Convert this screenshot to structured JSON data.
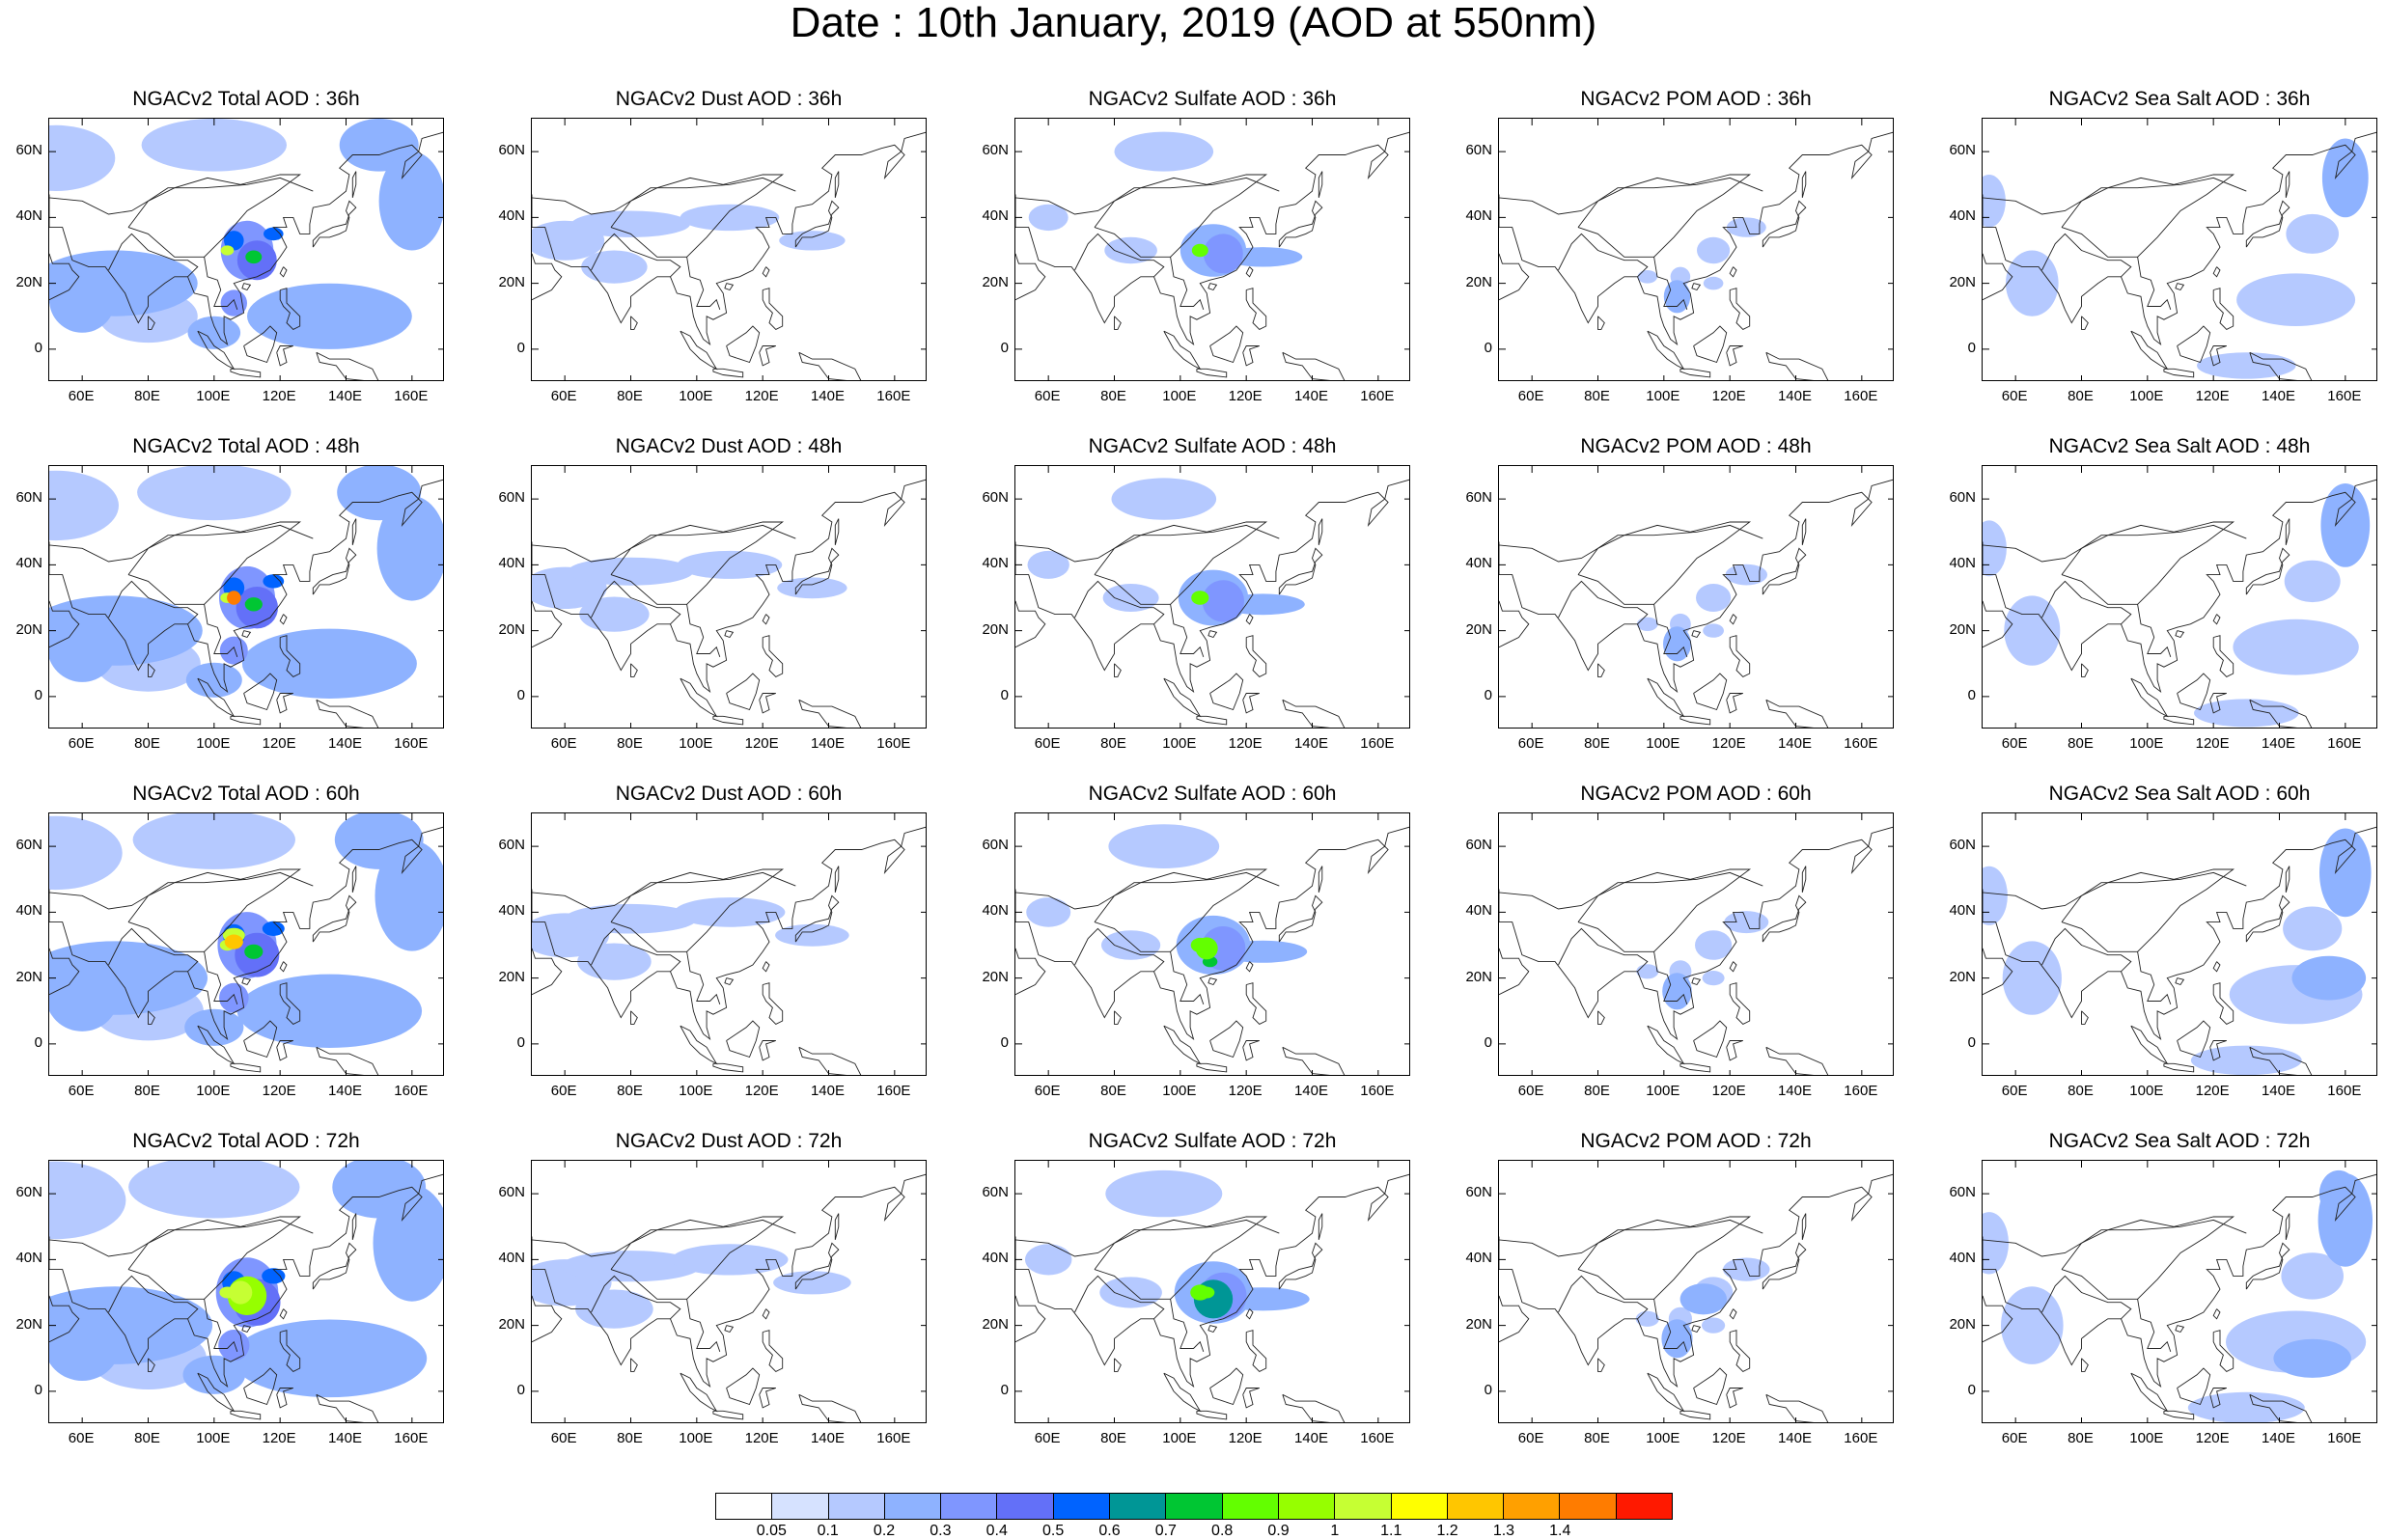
{
  "title": "Date : 10th January, 2019 (AOD at 550nm)",
  "panels": [
    {
      "title": "NGACv2 Total AOD : 36h",
      "species": "total",
      "lead": "36h"
    },
    {
      "title": "NGACv2 Dust AOD : 36h",
      "species": "dust",
      "lead": "36h"
    },
    {
      "title": "NGACv2 Sulfate AOD : 36h",
      "species": "sulfate",
      "lead": "36h"
    },
    {
      "title": "NGACv2 POM AOD : 36h",
      "species": "pom",
      "lead": "36h"
    },
    {
      "title": "NGACv2 Sea Salt AOD : 36h",
      "species": "seasalt",
      "lead": "36h"
    },
    {
      "title": "NGACv2 Total AOD : 48h",
      "species": "total",
      "lead": "48h"
    },
    {
      "title": "NGACv2 Dust AOD : 48h",
      "species": "dust",
      "lead": "48h"
    },
    {
      "title": "NGACv2 Sulfate AOD : 48h",
      "species": "sulfate",
      "lead": "48h"
    },
    {
      "title": "NGACv2 POM AOD : 48h",
      "species": "pom",
      "lead": "48h"
    },
    {
      "title": "NGACv2 Sea Salt AOD : 48h",
      "species": "seasalt",
      "lead": "48h"
    },
    {
      "title": "NGACv2 Total AOD : 60h",
      "species": "total",
      "lead": "60h"
    },
    {
      "title": "NGACv2 Dust AOD : 60h",
      "species": "dust",
      "lead": "60h"
    },
    {
      "title": "NGACv2 Sulfate AOD : 60h",
      "species": "sulfate",
      "lead": "60h"
    },
    {
      "title": "NGACv2 POM AOD : 60h",
      "species": "pom",
      "lead": "60h"
    },
    {
      "title": "NGACv2 Sea Salt AOD : 60h",
      "species": "seasalt",
      "lead": "60h"
    },
    {
      "title": "NGACv2 Total AOD : 72h",
      "species": "total",
      "lead": "72h"
    },
    {
      "title": "NGACv2 Dust AOD : 72h",
      "species": "dust",
      "lead": "72h"
    },
    {
      "title": "NGACv2 Sulfate AOD : 72h",
      "species": "sulfate",
      "lead": "72h"
    },
    {
      "title": "NGACv2 POM AOD : 72h",
      "species": "pom",
      "lead": "72h"
    },
    {
      "title": "NGACv2 Sea Salt  AOD : 72h",
      "species": "seasalt",
      "lead": "72h"
    }
  ],
  "lon_ticks": [
    "60E",
    "80E",
    "100E",
    "120E",
    "140E",
    "160E"
  ],
  "lat_ticks": [
    "60N",
    "40N",
    "20N",
    "0"
  ],
  "lon_range": [
    50,
    170
  ],
  "lat_range": [
    -10,
    70
  ],
  "colorbar": {
    "labels": [
      "0.05",
      "0.1",
      "0.2",
      "0.3",
      "0.4",
      "0.5",
      "0.6",
      "0.7",
      "0.8",
      "0.9",
      "1",
      "1.1",
      "1.2",
      "1.3",
      "1.4"
    ],
    "colors": [
      "#ffffff",
      "#d6e2ff",
      "#b5c9ff",
      "#8eb2ff",
      "#7f96ff",
      "#6370f8",
      "#0063ff",
      "#009696",
      "#00c633",
      "#63ff00",
      "#96ff00",
      "#c6ff33",
      "#ffff00",
      "#ffc600",
      "#ffa000",
      "#ff7c00",
      "#ff1900"
    ]
  }
}
